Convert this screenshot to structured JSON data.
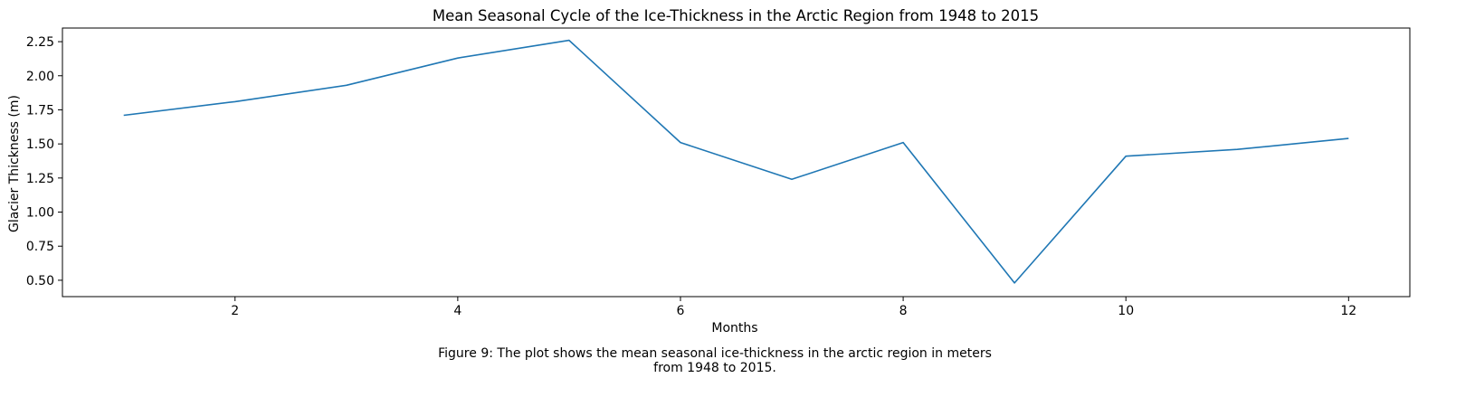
{
  "chart_data": {
    "type": "line",
    "title": "Mean Seasonal Cycle of the Ice-Thickness in the Arctic Region from 1948 to 2015",
    "xlabel": "Months",
    "ylabel": "Glacier Thickness (m)",
    "xlim": [
      0.45,
      12.55
    ],
    "ylim": [
      0.38,
      2.35
    ],
    "xticks": [
      2,
      4,
      6,
      8,
      10,
      12
    ],
    "xtick_labels": [
      "2",
      "4",
      "6",
      "8",
      "10",
      "12"
    ],
    "yticks": [
      0.5,
      0.75,
      1.0,
      1.25,
      1.5,
      1.75,
      2.0,
      2.25
    ],
    "ytick_labels": [
      "0.50",
      "0.75",
      "1.00",
      "1.25",
      "1.50",
      "1.75",
      "2.00",
      "2.25"
    ],
    "grid": false,
    "series": [
      {
        "color": "#1f77b4",
        "x": [
          1,
          2,
          3,
          4,
          5,
          6,
          7,
          8,
          9,
          10,
          11,
          12
        ],
        "y": [
          1.71,
          1.81,
          1.93,
          2.13,
          2.26,
          1.51,
          1.24,
          1.51,
          0.48,
          1.41,
          1.46,
          1.54
        ]
      }
    ]
  },
  "caption": {
    "line1": "Figure 9: The plot shows the mean seasonal ice-thickness in the arctic region in meters",
    "line2": "from 1948 to 2015."
  }
}
